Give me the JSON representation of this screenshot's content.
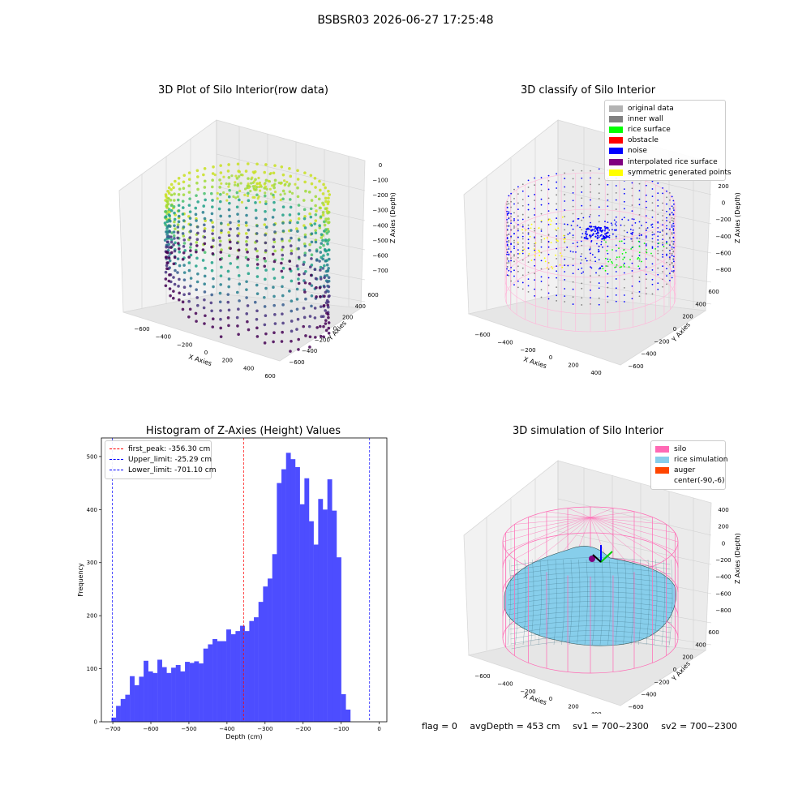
{
  "suptitle": "BSBSR03 2026-06-27 17:25:48",
  "panels": {
    "raw": {
      "title": "3D Plot of Silo Interior(row data)",
      "xlabel": "X Axies",
      "ylabel": "Y Axies",
      "zlabel": "Z Axies (Depth)",
      "xticks": [
        "-600",
        "-400",
        "-200",
        "0",
        "200",
        "400",
        "600"
      ],
      "yticks": [
        "-600",
        "-400",
        "-200",
        "0",
        "200",
        "400",
        "600"
      ],
      "zticks": [
        "0",
        "-100",
        "-200",
        "-300",
        "-400",
        "-500",
        "-600",
        "-700"
      ]
    },
    "classify": {
      "title": "3D classify of Silo Interior",
      "xlabel": "X Axies",
      "ylabel": "Y Axies",
      "zlabel": "Z Axies (Depth)",
      "xticks": [
        "-600",
        "-400",
        "-200",
        "0",
        "200",
        "400"
      ],
      "yticks": [
        "-600",
        "-400",
        "-200",
        "0",
        "200",
        "400",
        "600"
      ],
      "zticks": [
        "200",
        "0",
        "-200",
        "-400",
        "-600",
        "-800"
      ],
      "zticks_partial": "200",
      "legend": [
        {
          "label": "original data",
          "color": "#b3b3b3"
        },
        {
          "label": "inner wall",
          "color": "#808080"
        },
        {
          "label": "rice surface",
          "color": "#00ff00"
        },
        {
          "label": "obstacle",
          "color": "#ff0000"
        },
        {
          "label": "noise",
          "color": "#0000ff"
        },
        {
          "label": "interpolated rice surface",
          "color": "#800080"
        },
        {
          "label": "symmetric generated points",
          "color": "#ffff00"
        }
      ]
    },
    "simulation": {
      "title": "3D simulation of Silo Interior",
      "xlabel": "X Axies",
      "ylabel": "Y Axies",
      "zlabel": "Z Axies (Depth)",
      "xticks": [
        "-600",
        "-400",
        "-200",
        "0",
        "200",
        "400"
      ],
      "yticks": [
        "-600",
        "-400",
        "-200",
        "0",
        "200",
        "400",
        "600"
      ],
      "zticks": [
        "400",
        "200",
        "0",
        "-200",
        "-400",
        "-600",
        "-800"
      ],
      "legend": [
        {
          "label": "silo",
          "color": "#ff69b4"
        },
        {
          "label": "rice simulation",
          "color": "#87ceeb"
        },
        {
          "label": "auger",
          "color": "#ff4500"
        },
        {
          "label": "center(-90,-6)",
          "color": ""
        }
      ]
    }
  },
  "chart_data": {
    "type": "bar",
    "title": "Histogram of Z-Axies (Height) Values",
    "xlabel": "Depth (cm)",
    "ylabel": "Frequency",
    "xlim": [
      -730,
      20
    ],
    "ylim": [
      0,
      535
    ],
    "xticks": [
      -700,
      -600,
      -500,
      -400,
      -300,
      -200,
      -100,
      0
    ],
    "yticks": [
      0,
      100,
      200,
      300,
      400,
      500
    ],
    "bar_color": "#4d4dff",
    "bin_start": -703.5,
    "bin_width": 12.07,
    "values": [
      8,
      30,
      43,
      51,
      86,
      69,
      85,
      115,
      95,
      92,
      117,
      103,
      92,
      102,
      107,
      95,
      113,
      111,
      114,
      110,
      138,
      146,
      156,
      152,
      152,
      174,
      165,
      171,
      181,
      171,
      190,
      197,
      226,
      255,
      270,
      316,
      450,
      476,
      507,
      495,
      480,
      410,
      459,
      378,
      334,
      420,
      400,
      457,
      398,
      310,
      52,
      23
    ],
    "vlines": [
      {
        "label": "first_peak: -356.30 cm",
        "value": -356.3,
        "color": "#ff0000"
      },
      {
        "label": "Upper_limit: -25.29 cm",
        "value": -25.29,
        "color": "#0000ff"
      },
      {
        "label": "Lower_limit: -701.10 cm",
        "value": -701.1,
        "color": "#0000ff"
      }
    ],
    "legend_position": "top-left"
  },
  "footer": {
    "flag": "flag = 0",
    "avg_depth": "avgDepth = 453 cm",
    "sv1": "sv1 = 700~2300",
    "sv2": "sv2 = 700~2300"
  }
}
